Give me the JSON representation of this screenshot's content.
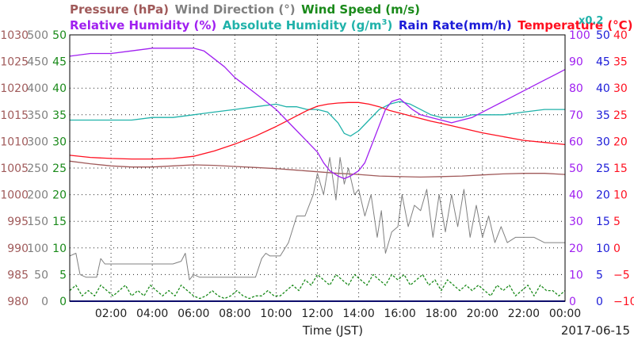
{
  "chart_data": {
    "type": "line",
    "date_label": "2017-06-15",
    "xlabel": "Time (JST)",
    "x_ticks": [
      "02:00",
      "04:00",
      "06:00",
      "08:00",
      "10:00",
      "12:00",
      "14:00",
      "16:00",
      "18:00",
      "20:00",
      "22:00",
      "00:00"
    ],
    "xlim_hours": [
      0,
      24
    ],
    "grid": true,
    "legend": {
      "row1": [
        {
          "text": "Pressure (hPa)",
          "color": "#a05a5a"
        },
        {
          "text": "Wind Direction (°)",
          "color": "#808080"
        },
        {
          "text": "Wind Speed (m/s)",
          "color": "#1a8a1a"
        }
      ],
      "row2": [
        {
          "text": "Relative Humidity (%)",
          "color": "#a020f0"
        },
        {
          "text": "Absolute Humidity (g/m",
          "sup": "3",
          "close": ")",
          "color": "#20b2aa",
          "scale_note": "x0.2"
        },
        {
          "text": "Rain Rate(mm/h)",
          "color": "#1c1cd8"
        },
        {
          "text": "Temperature (°C)",
          "color": "#ff1020"
        }
      ]
    },
    "axes": {
      "pressure": {
        "color": "#a05a5a",
        "ylim": [
          980,
          1030
        ],
        "ticks": [
          "1030",
          "1025",
          "1020",
          "1015",
          "1010",
          "1005",
          "1000",
          "995",
          "990",
          "985",
          "980"
        ]
      },
      "wind_direction": {
        "color": "#808080",
        "ylim": [
          0,
          500
        ],
        "ticks": [
          "500",
          "450",
          "400",
          "350",
          "300",
          "250",
          "200",
          "150",
          "100",
          "50",
          "0"
        ]
      },
      "wind_speed": {
        "color": "#1a8a1a",
        "ylim": [
          0,
          50
        ],
        "ticks": [
          "50",
          "45",
          "40",
          "35",
          "30",
          "25",
          "20",
          "15",
          "10",
          "5",
          "0"
        ]
      },
      "relative_humidity": {
        "color": "#a020f0",
        "ylim": [
          0,
          100
        ],
        "ticks": [
          "100",
          "90",
          "80",
          "70",
          "60",
          "50",
          "40",
          "30",
          "20",
          "10",
          "0"
        ]
      },
      "rain_rate": {
        "color": "#1c1cd8",
        "ylim": [
          0,
          50
        ],
        "ticks": [
          "50",
          "45",
          "40",
          "35",
          "30",
          "25",
          "20",
          "15",
          "10",
          "5",
          "0"
        ]
      },
      "temperature": {
        "color": "#ff1020",
        "ylim": [
          -10,
          40
        ],
        "ticks": [
          "40",
          "35",
          "30",
          "25",
          "20",
          "15",
          "10",
          "5",
          "0",
          "−5",
          "−10"
        ]
      }
    },
    "series": [
      {
        "name": "Pressure (hPa)",
        "axis": "pressure",
        "color": "#a05a5a",
        "style": "solid",
        "x": [
          0,
          1,
          2,
          3,
          4,
          5,
          6,
          7,
          8,
          9,
          10,
          11,
          12,
          13,
          14,
          15,
          16,
          17,
          18,
          19,
          20,
          21,
          22,
          23,
          24
        ],
        "y": [
          1006.3,
          1005.8,
          1005.4,
          1005.2,
          1005.2,
          1005.4,
          1005.6,
          1005.5,
          1005.3,
          1005.1,
          1004.9,
          1004.6,
          1004.3,
          1004.0,
          1003.8,
          1003.5,
          1003.4,
          1003.3,
          1003.4,
          1003.5,
          1003.7,
          1003.9,
          1004.0,
          1004.0,
          1003.8
        ]
      },
      {
        "name": "Wind Direction (°)",
        "axis": "wind_direction",
        "color": "#808080",
        "style": "solid",
        "x": [
          0,
          0.3,
          0.5,
          0.8,
          1.3,
          1.5,
          1.7,
          2.2,
          2.6,
          3.0,
          3.5,
          4.0,
          4.5,
          5.0,
          5.4,
          5.6,
          5.8,
          6.0,
          6.3,
          7.0,
          7.5,
          8.0,
          8.5,
          9.0,
          9.3,
          9.5,
          9.7,
          10.2,
          10.6,
          11.0,
          11.4,
          11.8,
          12.0,
          12.3,
          12.6,
          12.9,
          13.1,
          13.3,
          13.5,
          13.8,
          14.0,
          14.3,
          14.6,
          14.9,
          15.1,
          15.3,
          15.6,
          15.9,
          16.1,
          16.4,
          16.7,
          17.0,
          17.3,
          17.6,
          17.9,
          18.2,
          18.5,
          18.8,
          19.1,
          19.4,
          19.7,
          20.0,
          20.3,
          20.6,
          20.9,
          21.2,
          21.6,
          22.0,
          22.5,
          23.0,
          23.5,
          24.0
        ],
        "y": [
          85,
          90,
          50,
          45,
          45,
          80,
          70,
          70,
          70,
          70,
          70,
          70,
          70,
          70,
          75,
          90,
          40,
          50,
          45,
          45,
          45,
          45,
          45,
          45,
          80,
          90,
          85,
          85,
          110,
          160,
          160,
          200,
          240,
          200,
          270,
          190,
          270,
          220,
          250,
          200,
          210,
          160,
          200,
          120,
          170,
          90,
          130,
          140,
          200,
          140,
          180,
          170,
          210,
          120,
          200,
          130,
          200,
          140,
          210,
          120,
          180,
          120,
          160,
          110,
          140,
          110,
          120,
          120,
          120,
          110,
          110,
          110
        ]
      },
      {
        "name": "Wind Speed (m/s)",
        "axis": "wind_speed",
        "color": "#1a8a1a",
        "style": "dashed",
        "x": [
          0,
          0.3,
          0.6,
          0.9,
          1.2,
          1.5,
          1.8,
          2.1,
          2.4,
          2.7,
          3.0,
          3.3,
          3.6,
          3.9,
          4.2,
          4.5,
          4.8,
          5.1,
          5.4,
          5.7,
          6.0,
          6.3,
          6.6,
          6.9,
          7.2,
          7.5,
          7.8,
          8.1,
          8.4,
          8.7,
          9.0,
          9.3,
          9.6,
          9.9,
          10.2,
          10.5,
          10.8,
          11.1,
          11.4,
          11.7,
          12.0,
          12.3,
          12.6,
          12.9,
          13.2,
          13.5,
          13.8,
          14.1,
          14.4,
          14.7,
          15.0,
          15.3,
          15.6,
          15.9,
          16.2,
          16.5,
          16.8,
          17.1,
          17.4,
          17.7,
          18.0,
          18.3,
          18.6,
          18.9,
          19.2,
          19.5,
          19.8,
          20.1,
          20.4,
          20.7,
          21.0,
          21.3,
          21.6,
          21.9,
          22.2,
          22.5,
          22.8,
          23.1,
          23.4,
          23.7,
          24.0
        ],
        "y": [
          2,
          3,
          1,
          2,
          1,
          3,
          2,
          1,
          2,
          3,
          1,
          2,
          1,
          3,
          2,
          1,
          2,
          1,
          3,
          2,
          1,
          0.5,
          1,
          2,
          1,
          0.5,
          1,
          2,
          1,
          0.5,
          1,
          1,
          2,
          1,
          1,
          2,
          3,
          2,
          4,
          3,
          5,
          4,
          3,
          5,
          4,
          3,
          5,
          4,
          3,
          5,
          4,
          3,
          5,
          4,
          5,
          3,
          4,
          5,
          3,
          4,
          2,
          4,
          3,
          2,
          3,
          2,
          3,
          2,
          1,
          3,
          2,
          3,
          1,
          2,
          3,
          1,
          3,
          2,
          2,
          1,
          2
        ]
      },
      {
        "name": "Relative Humidity (%)",
        "axis": "relative_humidity",
        "color": "#a020f0",
        "style": "solid",
        "x": [
          0,
          1,
          2,
          3,
          4,
          5,
          6,
          6.5,
          7,
          7.5,
          8,
          8.5,
          9,
          9.5,
          10,
          10.5,
          11,
          11.5,
          12,
          12.3,
          12.6,
          13,
          13.3,
          13.6,
          14,
          14.3,
          14.6,
          15,
          15.3,
          15.6,
          16,
          16.3,
          16.6,
          17,
          17.5,
          18,
          18.5,
          19,
          19.5,
          20,
          20.5,
          21,
          21.5,
          22,
          22.5,
          23,
          23.5,
          24
        ],
        "y": [
          92,
          93,
          93,
          94,
          95,
          95,
          95,
          94,
          91,
          88,
          84,
          81,
          78,
          75,
          72,
          68,
          64,
          60,
          56,
          52,
          49,
          47,
          46,
          47,
          49,
          52,
          58,
          66,
          72,
          75,
          76,
          74,
          72,
          70,
          69,
          68,
          67,
          68,
          69,
          71,
          73,
          75,
          77,
          79,
          81,
          83,
          85,
          87
        ]
      },
      {
        "name": "Absolute Humidity (g/m3) x0.2",
        "axis": "relative_humidity",
        "color": "#20b2aa",
        "style": "solid",
        "x": [
          0,
          1,
          2,
          3,
          4,
          5,
          6,
          7,
          8,
          9,
          10,
          10.5,
          11,
          11.5,
          12,
          12.5,
          13,
          13.3,
          13.6,
          14,
          14.5,
          15,
          15.5,
          16,
          16.5,
          17,
          17.5,
          18,
          18.5,
          19,
          19.5,
          20,
          21,
          22,
          23,
          24
        ],
        "y": [
          68,
          68,
          68,
          68,
          69,
          69,
          70,
          71,
          72,
          73,
          74,
          73,
          73,
          72,
          72,
          71,
          67,
          63,
          62,
          64,
          68,
          72,
          74,
          75,
          74,
          72,
          70,
          69,
          69,
          69,
          70,
          70,
          70,
          71,
          72,
          72
        ]
      },
      {
        "name": "Temperature (°C)",
        "axis": "temperature",
        "color": "#ff1020",
        "style": "solid",
        "x": [
          0,
          1,
          2,
          3,
          4,
          5,
          6,
          7,
          8,
          9,
          10,
          10.5,
          11,
          11.5,
          12,
          12.5,
          13,
          13.5,
          14,
          14.5,
          15,
          15.5,
          16,
          16.5,
          17,
          17.5,
          18,
          19,
          20,
          21,
          22,
          23,
          24
        ],
        "y": [
          17.4,
          17.0,
          16.8,
          16.7,
          16.7,
          16.8,
          17.2,
          18.2,
          19.5,
          21.0,
          22.8,
          23.8,
          24.8,
          25.8,
          26.6,
          27.0,
          27.2,
          27.3,
          27.3,
          27.0,
          26.5,
          25.8,
          25.3,
          24.8,
          24.3,
          23.8,
          23.4,
          22.5,
          21.6,
          20.9,
          20.2,
          19.8,
          19.4
        ]
      },
      {
        "name": "Rain Rate(mm/h)",
        "axis": "rain_rate",
        "color": "#1c1cd8",
        "style": "solid",
        "x": [
          0,
          24
        ],
        "y": [
          0,
          0
        ]
      }
    ]
  }
}
